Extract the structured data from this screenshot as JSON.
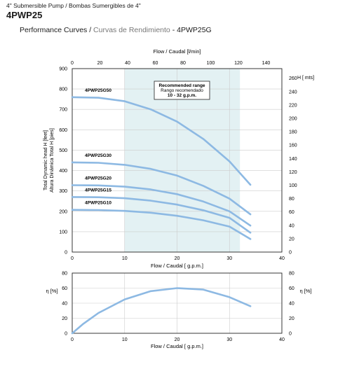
{
  "header": {
    "subtitle": "4\" Submersible Pump / Bombas Sumergibles de 4\"",
    "model": "4PWP25",
    "title_en": "Performance Curves /",
    "title_es": "Curvas de Rendimiento",
    "title_model": "- 4PWP25G"
  },
  "colors": {
    "curve": "#8db9e3",
    "band": "#e3f1f3",
    "grid": "#cccccc"
  },
  "chart_data": [
    {
      "type": "line",
      "x_top_label": "Flow / Caudal [l/min]",
      "x_top_ticks": [
        "0",
        "20",
        "40",
        "60",
        "80",
        "100",
        "120",
        "140"
      ],
      "xlabel": "Flow / Caudal [ g.p.m.]",
      "ylabel_left_1": "Total Dynamic head H [feet]",
      "ylabel_left_2": "Altura Dinámica Total H [pies]",
      "ylabel_right": "H [ mts]",
      "xlim": [
        0,
        40
      ],
      "ylim": [
        0,
        900
      ],
      "x_ticks": [
        "0",
        "10",
        "20",
        "30",
        "40"
      ],
      "y_ticks": [
        "0",
        "100",
        "200",
        "300",
        "400",
        "500",
        "600",
        "700",
        "800",
        "900"
      ],
      "y_right_ticks": [
        "0",
        "20",
        "40",
        "60",
        "80",
        "100",
        "120",
        "140",
        "160",
        "180",
        "200",
        "220",
        "240",
        "260"
      ],
      "band": {
        "x_range": [
          10,
          32
        ],
        "label_1": "Recommended range",
        "label_2": "Rango recomendado",
        "label_3": "10 - 32 g.p.m."
      },
      "series": [
        {
          "name": "4PWP25G50",
          "x": [
            0,
            5,
            10,
            15,
            20,
            25,
            30,
            34
          ],
          "y": [
            760,
            757,
            740,
            700,
            640,
            555,
            445,
            330
          ]
        },
        {
          "name": "4PWP25G30",
          "x": [
            0,
            5,
            10,
            15,
            20,
            25,
            30,
            34
          ],
          "y": [
            440,
            438,
            428,
            408,
            375,
            325,
            262,
            185
          ]
        },
        {
          "name": "4PWP25G20",
          "x": [
            0,
            5,
            10,
            15,
            20,
            25,
            30,
            34
          ],
          "y": [
            328,
            327,
            321,
            307,
            284,
            248,
            200,
            130
          ]
        },
        {
          "name": "4PWP25G15",
          "x": [
            0,
            5,
            10,
            15,
            20,
            25,
            30,
            34
          ],
          "y": [
            270,
            269,
            264,
            252,
            233,
            205,
            168,
            95
          ]
        },
        {
          "name": "4PWP25G10",
          "x": [
            0,
            5,
            10,
            15,
            20,
            25,
            30,
            34
          ],
          "y": [
            207,
            206,
            202,
            193,
            178,
            156,
            125,
            64
          ]
        }
      ]
    },
    {
      "type": "line",
      "xlabel": "Flow / Caudal [ g.p.m.]",
      "ylabel": "η [%]",
      "ylabel_right": "η [%]",
      "xlim": [
        0,
        40
      ],
      "ylim": [
        0,
        80
      ],
      "x_ticks": [
        "0",
        "10",
        "20",
        "30",
        "40"
      ],
      "y_ticks": [
        "0",
        "20",
        "40",
        "60",
        "80"
      ],
      "series": [
        {
          "x": [
            0,
            2,
            5,
            10,
            15,
            20,
            25,
            30,
            34
          ],
          "y": [
            0,
            12,
            27,
            45,
            56,
            60,
            58,
            48,
            36
          ]
        }
      ]
    }
  ]
}
